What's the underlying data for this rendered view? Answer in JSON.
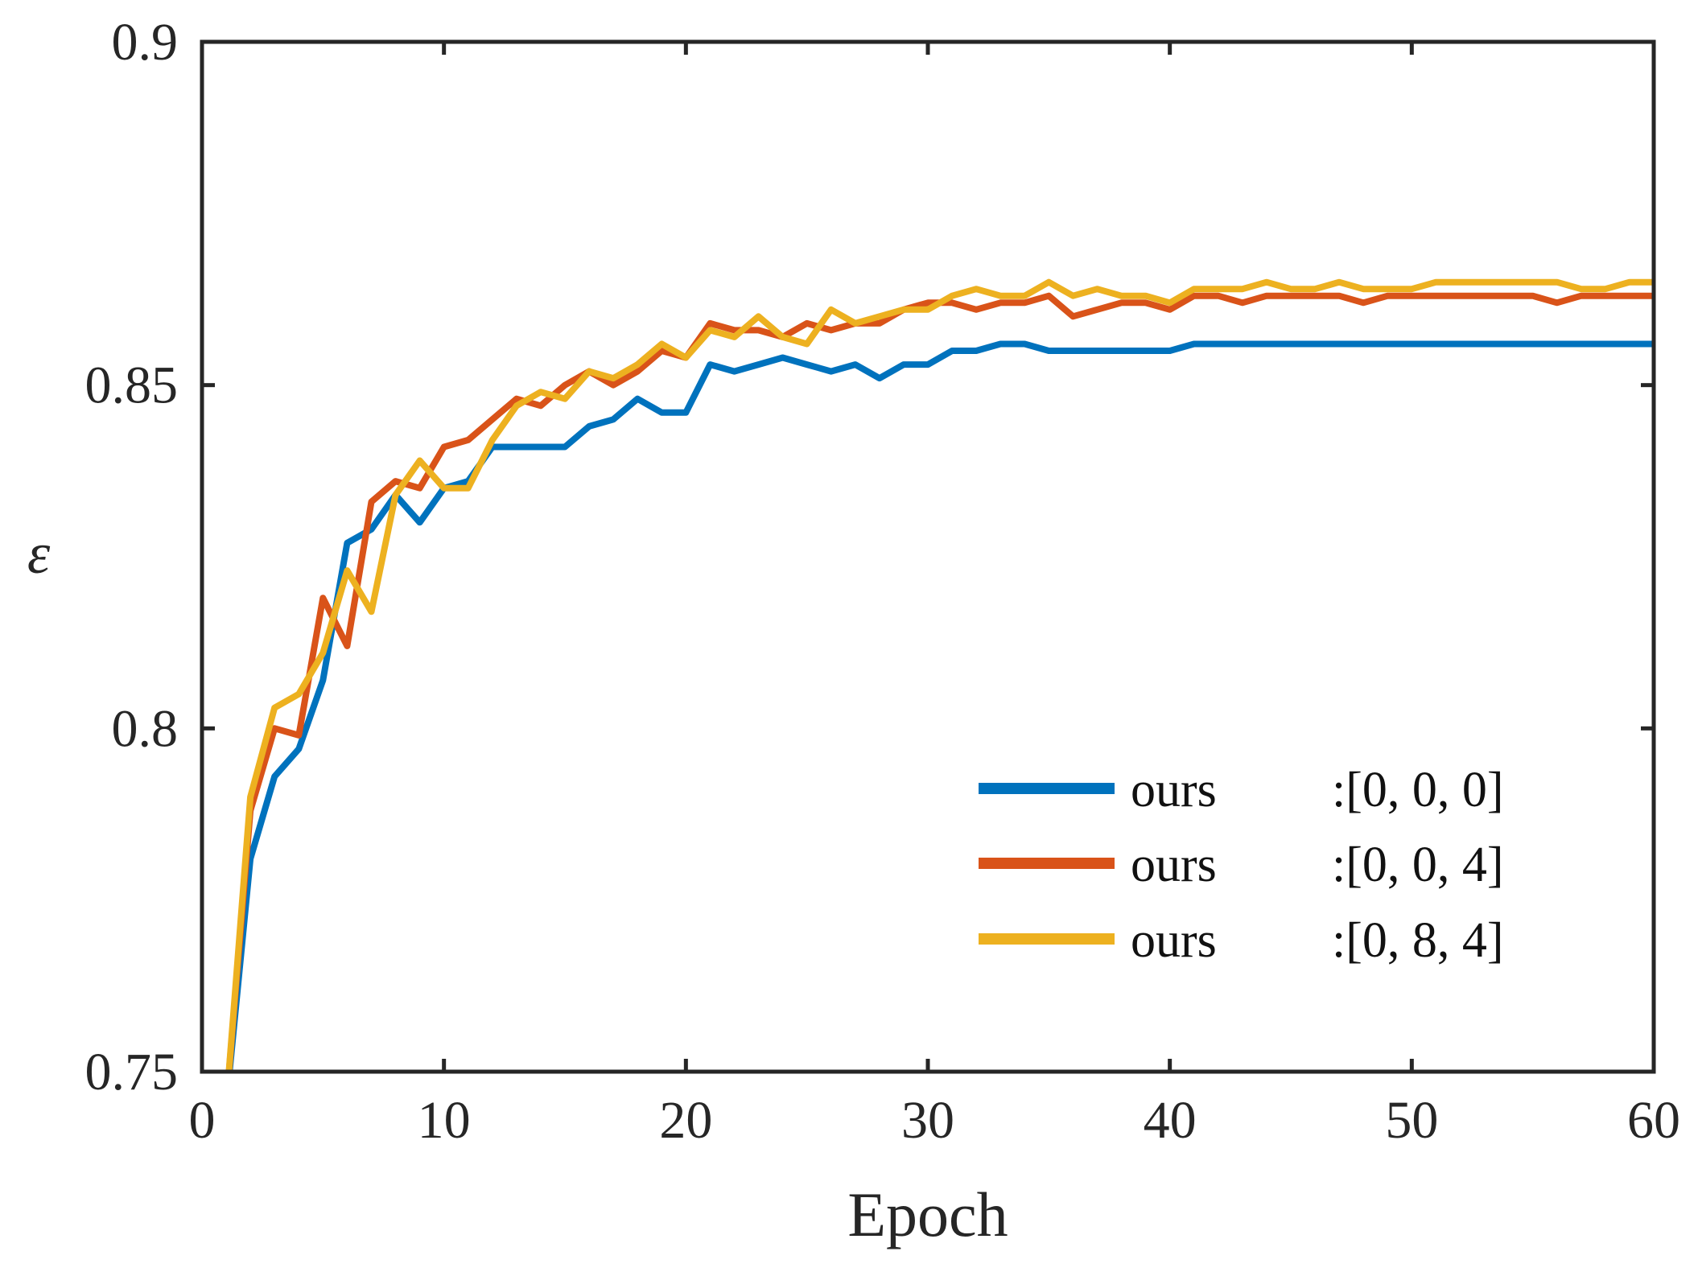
{
  "chart_data": {
    "type": "line",
    "title": "",
    "xlabel": "Epoch",
    "ylabel": "ε",
    "xlim": [
      0,
      60
    ],
    "ylim": [
      0.75,
      0.9
    ],
    "xticks": [
      0,
      10,
      20,
      30,
      40,
      50,
      60
    ],
    "xtick_labels": [
      "0",
      "10",
      "20",
      "30",
      "40",
      "50",
      "60"
    ],
    "yticks": [
      0.75,
      0.8,
      0.85,
      0.9
    ],
    "ytick_labels": [
      "0.75",
      "0.8",
      "0.85",
      "0.9"
    ],
    "grid": false,
    "legend_position": "bottom-right",
    "x": [
      1,
      2,
      3,
      4,
      5,
      6,
      7,
      8,
      9,
      10,
      11,
      12,
      13,
      14,
      15,
      16,
      17,
      18,
      19,
      20,
      21,
      22,
      23,
      24,
      25,
      26,
      27,
      28,
      29,
      30,
      31,
      32,
      33,
      34,
      35,
      36,
      37,
      38,
      39,
      40,
      41,
      42,
      43,
      44,
      45,
      46,
      47,
      48,
      49,
      50,
      51,
      52,
      53,
      54,
      55,
      56,
      57,
      58,
      59,
      60
    ],
    "series": [
      {
        "name": "ours",
        "config": ":[0, 0, 0]",
        "color": "#0072BD",
        "values": [
          0.745,
          0.781,
          0.793,
          0.797,
          0.807,
          0.827,
          0.829,
          0.834,
          0.83,
          0.835,
          0.836,
          0.841,
          0.841,
          0.841,
          0.841,
          0.844,
          0.845,
          0.848,
          0.846,
          0.846,
          0.853,
          0.852,
          0.853,
          0.854,
          0.853,
          0.852,
          0.853,
          0.851,
          0.853,
          0.853,
          0.855,
          0.855,
          0.856,
          0.856,
          0.855,
          0.855,
          0.855,
          0.855,
          0.855,
          0.855,
          0.856,
          0.856,
          0.856,
          0.856,
          0.856,
          0.856,
          0.856,
          0.856,
          0.856,
          0.856,
          0.856,
          0.856,
          0.856,
          0.856,
          0.856,
          0.856,
          0.856,
          0.856,
          0.856,
          0.856
        ]
      },
      {
        "name": "ours",
        "config": ":[0, 0, 4]",
        "color": "#D95319",
        "values": [
          0.745,
          0.788,
          0.8,
          0.799,
          0.819,
          0.812,
          0.833,
          0.836,
          0.835,
          0.841,
          0.842,
          0.845,
          0.848,
          0.847,
          0.85,
          0.852,
          0.85,
          0.852,
          0.855,
          0.854,
          0.859,
          0.858,
          0.858,
          0.857,
          0.859,
          0.858,
          0.859,
          0.859,
          0.861,
          0.862,
          0.862,
          0.861,
          0.862,
          0.862,
          0.863,
          0.86,
          0.861,
          0.862,
          0.862,
          0.861,
          0.863,
          0.863,
          0.862,
          0.863,
          0.863,
          0.863,
          0.863,
          0.862,
          0.863,
          0.863,
          0.863,
          0.863,
          0.863,
          0.863,
          0.863,
          0.862,
          0.863,
          0.863,
          0.863,
          0.863
        ]
      },
      {
        "name": "ours",
        "config": ":[0, 8, 4]",
        "color": "#EDB120",
        "values": [
          0.745,
          0.79,
          0.803,
          0.805,
          0.811,
          0.823,
          0.817,
          0.834,
          0.839,
          0.835,
          0.835,
          0.842,
          0.847,
          0.849,
          0.848,
          0.852,
          0.851,
          0.853,
          0.856,
          0.854,
          0.858,
          0.857,
          0.86,
          0.857,
          0.856,
          0.861,
          0.859,
          0.86,
          0.861,
          0.861,
          0.863,
          0.864,
          0.863,
          0.863,
          0.865,
          0.863,
          0.864,
          0.863,
          0.863,
          0.862,
          0.864,
          0.864,
          0.864,
          0.865,
          0.864,
          0.864,
          0.865,
          0.864,
          0.864,
          0.864,
          0.865,
          0.865,
          0.865,
          0.865,
          0.865,
          0.865,
          0.864,
          0.864,
          0.865,
          0.865
        ]
      }
    ]
  }
}
